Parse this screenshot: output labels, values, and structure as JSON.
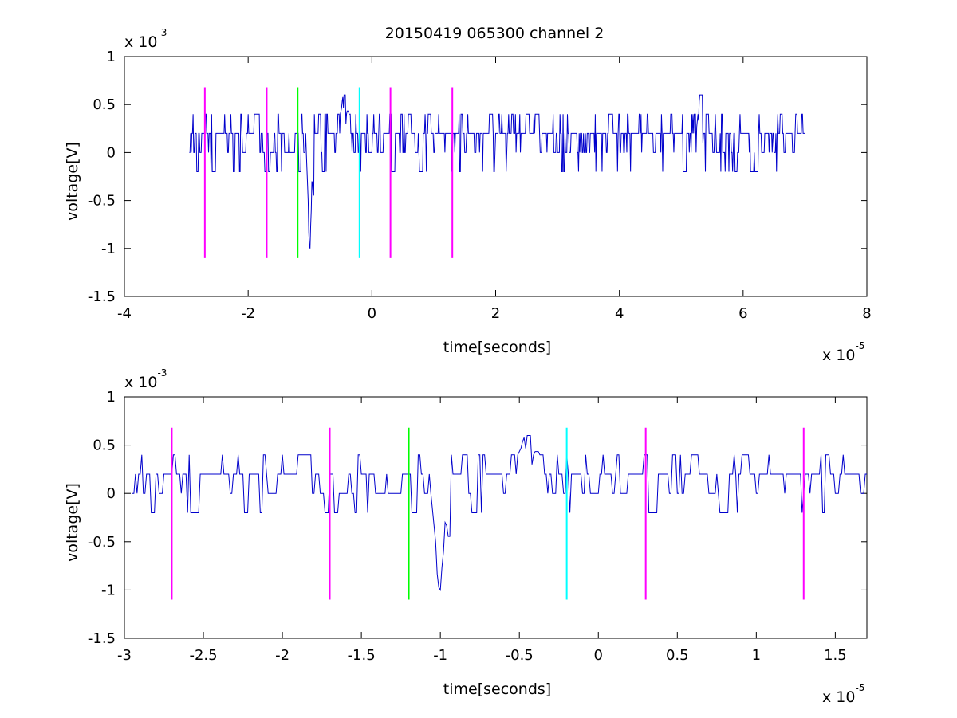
{
  "figure": {
    "title": "20150419 065300 channel 2"
  },
  "chart_data": [
    {
      "type": "line",
      "panel": "top",
      "xlabel": "time[seconds]",
      "ylabel": "voltage[V]",
      "x_multiplier": {
        "base": "x 10",
        "exponent": "-5"
      },
      "y_multiplier": {
        "base": "x 10",
        "exponent": "-3"
      },
      "xlim": [
        -4,
        8
      ],
      "ylim": [
        -1.5,
        1
      ],
      "xticks": [
        -4,
        -2,
        0,
        2,
        4,
        6,
        8
      ],
      "yticks": [
        1,
        0.5,
        0,
        -0.5,
        -1,
        -1.5
      ],
      "xtick_labels": [
        "-4",
        "-2",
        "0",
        "2",
        "4",
        "6",
        "8"
      ],
      "ytick_labels": [
        "1",
        "0.5",
        "0",
        "-0.5",
        "-1",
        "-1.5"
      ],
      "grid": false,
      "signal": {
        "color": "#0000cc",
        "x_start": -2.95,
        "x_end": 7.0,
        "sample_step": 0.01,
        "noise_levels": [
          -0.2,
          0,
          0.2,
          0.4
        ],
        "features": [
          {
            "x": -1.0,
            "y": -1.0
          },
          {
            "x": -0.45,
            "y": 0.6
          },
          {
            "x": 5.3,
            "y": 0.6
          }
        ]
      },
      "markers": [
        {
          "x": -2.7,
          "color": "#ff00ff",
          "y_top": 0.68,
          "y_bottom": -1.1
        },
        {
          "x": -1.7,
          "color": "#ff00ff",
          "y_top": 0.68,
          "y_bottom": -1.1
        },
        {
          "x": -1.2,
          "color": "#00ff00",
          "y_top": 0.68,
          "y_bottom": -1.1
        },
        {
          "x": -0.2,
          "color": "#00ffff",
          "y_top": 0.68,
          "y_bottom": -1.1
        },
        {
          "x": 0.3,
          "color": "#ff00ff",
          "y_top": 0.68,
          "y_bottom": -1.1
        },
        {
          "x": 1.3,
          "color": "#ff00ff",
          "y_top": 0.68,
          "y_bottom": -1.1
        }
      ]
    },
    {
      "type": "line",
      "panel": "bottom",
      "xlabel": "time[seconds]",
      "ylabel": "voltage[V]",
      "x_multiplier": {
        "base": "x 10",
        "exponent": "-5"
      },
      "y_multiplier": {
        "base": "x 10",
        "exponent": "-3"
      },
      "xlim": [
        -3,
        1.7
      ],
      "ylim": [
        -1.5,
        1
      ],
      "xticks": [
        -3,
        -2.5,
        -2,
        -1.5,
        -1,
        -0.5,
        0,
        0.5,
        1,
        1.5
      ],
      "yticks": [
        1,
        0.5,
        0,
        -0.5,
        -1,
        -1.5
      ],
      "xtick_labels": [
        "-3",
        "-2.5",
        "-2",
        "-1.5",
        "-1",
        "-0.5",
        "0",
        "0.5",
        "1",
        "1.5"
      ],
      "ytick_labels": [
        "1",
        "0.5",
        "0",
        "-0.5",
        "-1",
        "-1.5"
      ],
      "grid": false,
      "signal": {
        "color": "#0000cc",
        "x_start": -2.95,
        "x_end": 1.7,
        "sample_step": 0.01,
        "noise_levels": [
          -0.2,
          0,
          0.2,
          0.4
        ],
        "features": [
          {
            "x": -1.0,
            "y": -1.0
          },
          {
            "x": -0.45,
            "y": 0.6
          }
        ]
      },
      "markers": [
        {
          "x": -2.7,
          "color": "#ff00ff",
          "y_top": 0.68,
          "y_bottom": -1.1
        },
        {
          "x": -1.7,
          "color": "#ff00ff",
          "y_top": 0.68,
          "y_bottom": -1.1
        },
        {
          "x": -1.2,
          "color": "#00ff00",
          "y_top": 0.68,
          "y_bottom": -1.1
        },
        {
          "x": -0.2,
          "color": "#00ffff",
          "y_top": 0.68,
          "y_bottom": -1.1
        },
        {
          "x": 0.3,
          "color": "#ff00ff",
          "y_top": 0.68,
          "y_bottom": -1.1
        },
        {
          "x": 1.3,
          "color": "#ff00ff",
          "y_top": 0.68,
          "y_bottom": -1.1
        }
      ]
    }
  ]
}
